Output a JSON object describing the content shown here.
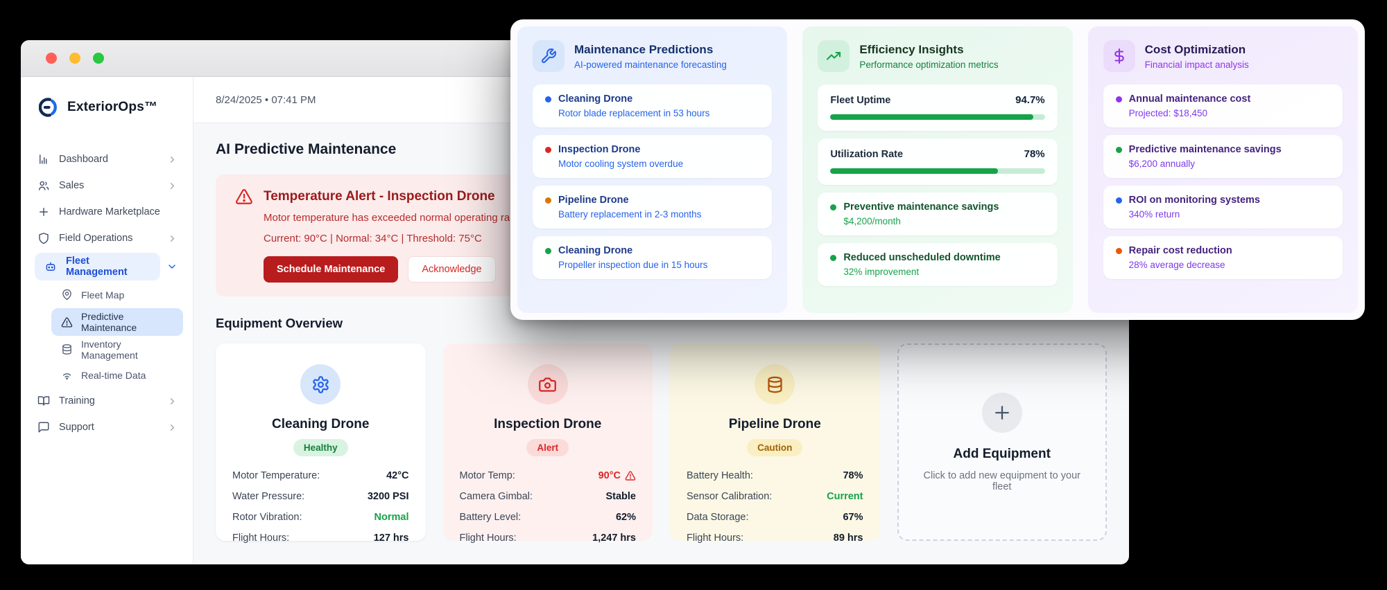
{
  "window": {
    "brand": "ExteriorOps™",
    "date_line": "8/24/2025 • 07:41 PM",
    "page_title": "AI Predictive Maintenance",
    "section_title": "Equipment Overview"
  },
  "sidebar": {
    "items": [
      {
        "label": "Dashboard"
      },
      {
        "label": "Sales"
      },
      {
        "label": "Hardware Marketplace"
      },
      {
        "label": "Field Operations"
      },
      {
        "label": "Fleet Management"
      },
      {
        "label": "Training"
      },
      {
        "label": "Support"
      }
    ],
    "fleet_subitems": [
      {
        "label": "Fleet Map"
      },
      {
        "label": "Predictive Maintenance"
      },
      {
        "label": "Inventory Management"
      },
      {
        "label": "Real-time Data"
      }
    ]
  },
  "alert": {
    "title": "Temperature Alert - Inspection Drone",
    "message": "Motor temperature has exceeded normal operating range.",
    "stats": "Current: 90°C | Normal: 34°C | Threshold: 75°C",
    "primary_button": "Schedule Maintenance",
    "secondary_button": "Acknowledge"
  },
  "equipment": {
    "cards": [
      {
        "name": "Cleaning Drone",
        "status": "Healthy",
        "rows": [
          {
            "label": "Motor Temperature:",
            "value": "42°C"
          },
          {
            "label": "Water Pressure:",
            "value": "3200 PSI"
          },
          {
            "label": "Rotor Vibration:",
            "value": "Normal",
            "value_color": "#16a34a"
          },
          {
            "label": "Flight Hours:",
            "value": "127 hrs"
          }
        ]
      },
      {
        "name": "Inspection Drone",
        "status": "Alert",
        "rows": [
          {
            "label": "Motor Temp:",
            "value": "90°C",
            "value_color": "#dc2626"
          },
          {
            "label": "Camera Gimbal:",
            "value": "Stable"
          },
          {
            "label": "Battery Level:",
            "value": "62%"
          },
          {
            "label": "Flight Hours:",
            "value": "1,247 hrs"
          }
        ]
      },
      {
        "name": "Pipeline Drone",
        "status": "Caution",
        "rows": [
          {
            "label": "Battery Health:",
            "value": "78%"
          },
          {
            "label": "Sensor Calibration:",
            "value": "Current",
            "value_color": "#16a34a"
          },
          {
            "label": "Data Storage:",
            "value": "67%"
          },
          {
            "label": "Flight Hours:",
            "value": "89 hrs"
          }
        ]
      }
    ],
    "add_card": {
      "title": "Add Equipment",
      "subtitle": "Click to add new equipment to your fleet"
    }
  },
  "overlay": {
    "maintenance": {
      "title": "Maintenance Predictions",
      "subtitle": "AI-powered maintenance forecasting",
      "items": [
        {
          "dot": "#2563eb",
          "name": "Cleaning Drone",
          "detail": "Rotor blade replacement in 53 hours"
        },
        {
          "dot": "#dc2626",
          "name": "Inspection Drone",
          "detail": "Motor cooling system overdue"
        },
        {
          "dot": "#d97706",
          "name": "Pipeline Drone",
          "detail": "Battery replacement in 2-3 months"
        },
        {
          "dot": "#16a34a",
          "name": "Cleaning Drone",
          "detail": "Propeller inspection due in 15 hours"
        }
      ]
    },
    "efficiency": {
      "title": "Efficiency Insights",
      "subtitle": "Performance optimization metrics",
      "metrics": [
        {
          "label": "Fleet Uptime",
          "value": "94.7%",
          "percent": 94.7
        },
        {
          "label": "Utilization Rate",
          "value": "78%",
          "percent": 78
        }
      ],
      "items": [
        {
          "dot": "#16a34a",
          "name": "Preventive maintenance savings",
          "detail": "$4,200/month"
        },
        {
          "dot": "#16a34a",
          "name": "Reduced unscheduled downtime",
          "detail": "32% improvement"
        }
      ]
    },
    "cost": {
      "title": "Cost Optimization",
      "subtitle": "Financial impact analysis",
      "items": [
        {
          "dot": "#9333ea",
          "name": "Annual maintenance cost",
          "detail": "Projected: $18,450"
        },
        {
          "dot": "#16a34a",
          "name": "Predictive maintenance savings",
          "detail": "$6,200 annually"
        },
        {
          "dot": "#2563eb",
          "name": "ROI on monitoring systems",
          "detail": "340% return"
        },
        {
          "dot": "#ea580c",
          "name": "Repair cost reduction",
          "detail": "28% average decrease"
        }
      ]
    }
  },
  "colors": {
    "accent_blue": "#2563eb",
    "accent_green": "#16a34a",
    "accent_purple": "#9333ea",
    "accent_red": "#dc2626",
    "accent_amber": "#d97706",
    "accent_orange": "#ea580c"
  }
}
